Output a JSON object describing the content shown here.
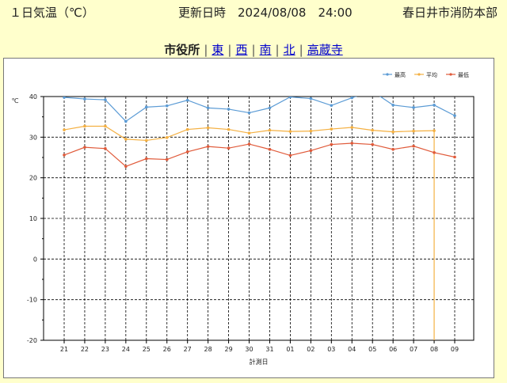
{
  "header": {
    "title": "１日気温（℃）",
    "updated": "更新日時　2024/08/08　24:00",
    "department": "春日井市消防本部"
  },
  "nav": {
    "current": "市役所",
    "links": [
      "東",
      "西",
      "南",
      "北",
      "高蔵寺"
    ]
  },
  "chart_data": {
    "type": "line",
    "title": "",
    "xlabel": "計測日",
    "ylabel": "℃",
    "ylim": [
      -20,
      40
    ],
    "yticks": [
      40,
      30,
      20,
      10,
      0,
      -10,
      -20
    ],
    "categories": [
      "21",
      "22",
      "23",
      "24",
      "25",
      "26",
      "27",
      "28",
      "29",
      "30",
      "31",
      "01",
      "02",
      "03",
      "04",
      "05",
      "06",
      "07",
      "08",
      "09"
    ],
    "grid": true,
    "legend_position": "top-right",
    "series": [
      {
        "name": "最高",
        "color": "#5b9bd5",
        "values": [
          39.8,
          39.4,
          39.2,
          33.9,
          37.4,
          37.7,
          39.1,
          37.2,
          36.9,
          36.0,
          37.2,
          39.9,
          39.5,
          37.8,
          39.7,
          41.3,
          37.9,
          37.3,
          37.9,
          35.3
        ]
      },
      {
        "name": "平均",
        "color": "#f4b042",
        "values": [
          31.8,
          32.7,
          32.7,
          29.5,
          29.2,
          29.9,
          31.9,
          32.3,
          31.9,
          31.0,
          31.7,
          31.4,
          31.5,
          32.0,
          32.4,
          31.7,
          31.3,
          31.5,
          31.6,
          null
        ]
      },
      {
        "name": "最低",
        "color": "#e05a3a",
        "values": [
          25.6,
          27.5,
          27.2,
          22.8,
          24.7,
          24.5,
          26.4,
          27.7,
          27.3,
          28.3,
          27.0,
          25.5,
          26.7,
          28.2,
          28.5,
          28.2,
          27.0,
          27.8,
          26.2,
          25.1
        ]
      }
    ],
    "drop_line": {
      "category": "08",
      "to_value": -20,
      "color": "#f4b042"
    }
  }
}
